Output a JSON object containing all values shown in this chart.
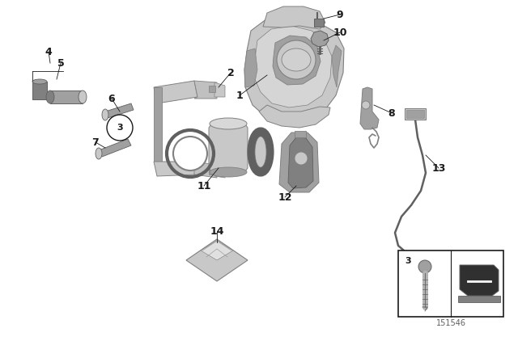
{
  "background_color": "#ffffff",
  "fig_width": 6.4,
  "fig_height": 4.48,
  "dpi": 100,
  "gray_light": "#c8c8c8",
  "gray_mid": "#a0a0a0",
  "gray_dark": "#808080",
  "gray_vdark": "#606060",
  "black": "#1a1a1a",
  "catalog_number": "151546",
  "label_fontsize": 9,
  "label_fontweight": "bold"
}
